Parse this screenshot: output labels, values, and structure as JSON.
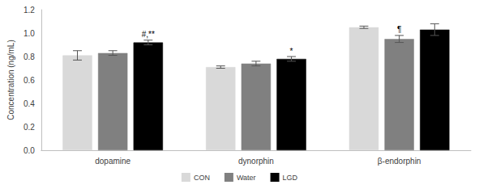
{
  "chart_data": {
    "type": "bar",
    "y_label": "Concentration (ng/mL)",
    "categories": [
      "dopamine",
      "dynorphin",
      "β-endorphin"
    ],
    "series": [
      {
        "name": "CON",
        "color": "#d9d9d9",
        "values": [
          0.81,
          0.71,
          1.05
        ],
        "errors": [
          0.04,
          0.01,
          0.01
        ]
      },
      {
        "name": "Water",
        "color": "#808080",
        "values": [
          0.83,
          0.74,
          0.95
        ],
        "errors": [
          0.02,
          0.02,
          0.03
        ]
      },
      {
        "name": "LGD",
        "color": "#000000",
        "values": [
          0.92,
          0.78,
          1.03
        ],
        "errors": [
          0.02,
          0.02,
          0.05
        ]
      }
    ],
    "annotations": [
      {
        "series": "LGD",
        "category": "dopamine",
        "text": "#,**"
      },
      {
        "series": "LGD",
        "category": "dynorphin",
        "text": "*"
      },
      {
        "series": "Water",
        "category": "β-endorphin",
        "text": "¶"
      }
    ],
    "ylim": [
      0,
      1.2
    ],
    "yticks": [
      {
        "value": 0,
        "label": "0.0"
      },
      0.2,
      0.4,
      0.6,
      0.8,
      {
        "value": 1,
        "label": "1.0"
      },
      1.2
    ],
    "grid": false,
    "legend": "bottom"
  }
}
